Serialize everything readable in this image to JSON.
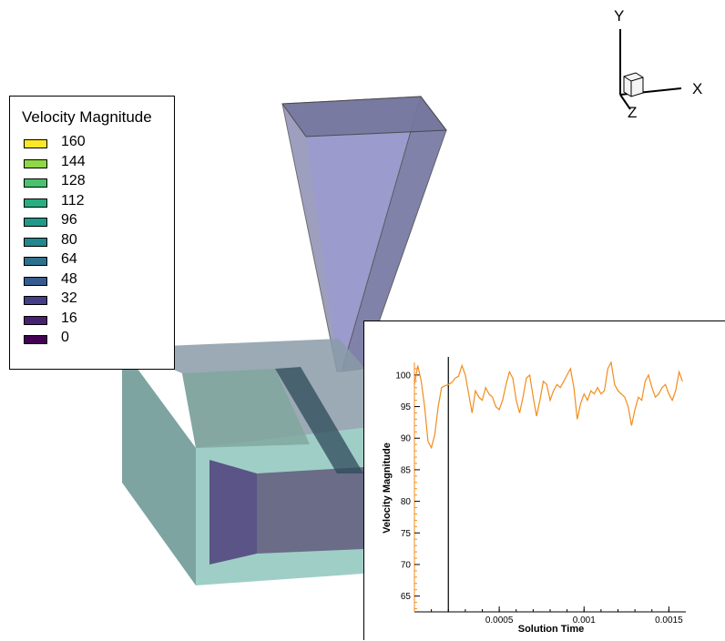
{
  "legend": {
    "title": "Velocity Magnitude",
    "levels": [
      {
        "label": "160",
        "color": "#fde725"
      },
      {
        "label": "144",
        "color": "#8fd744"
      },
      {
        "label": "128",
        "color": "#4ac16d"
      },
      {
        "label": "112",
        "color": "#28ae80"
      },
      {
        "label": "96",
        "color": "#1f9a8a"
      },
      {
        "label": "80",
        "color": "#21888d"
      },
      {
        "label": "64",
        "color": "#2c718e"
      },
      {
        "label": "48",
        "color": "#365c8d"
      },
      {
        "label": "32",
        "color": "#433e85"
      },
      {
        "label": "16",
        "color": "#482173"
      },
      {
        "label": "0",
        "color": "#440154"
      }
    ]
  },
  "axes_triad": {
    "x": "X",
    "y": "Y",
    "z": "Z"
  },
  "chart_data": {
    "type": "line",
    "xlabel": "Solution Time",
    "ylabel": "Velocity Magnitude",
    "xlim": [
      0,
      0.0016
    ],
    "ylim": [
      62.5,
      102
    ],
    "x_ticks": [
      {
        "value": 0.0005,
        "label": "0.0005"
      },
      {
        "value": 0.001,
        "label": "0.001"
      },
      {
        "value": 0.0015,
        "label": "0.0015"
      }
    ],
    "y_ticks": [
      {
        "value": 65,
        "label": "65"
      },
      {
        "value": 70,
        "label": "70"
      },
      {
        "value": 75,
        "label": "75"
      },
      {
        "value": 80,
        "label": "80"
      },
      {
        "value": 85,
        "label": "85"
      },
      {
        "value": 90,
        "label": "90"
      },
      {
        "value": 95,
        "label": "95"
      },
      {
        "value": 100,
        "label": "100"
      }
    ],
    "marker_time": 0.0002,
    "line_color": "#f28c1c",
    "series": [
      {
        "x": [
          0.0,
          2e-05,
          4e-05,
          6e-05,
          8e-05,
          0.0001,
          0.00012,
          0.00014,
          0.00016,
          0.00018,
          0.0002,
          0.00022,
          0.00024,
          0.00026,
          0.00028,
          0.0003,
          0.00032,
          0.00034,
          0.00036,
          0.00038,
          0.0004,
          0.00042,
          0.00044,
          0.00046,
          0.00048,
          0.0005,
          0.00052,
          0.00054,
          0.00056,
          0.00058,
          0.0006,
          0.00062,
          0.00064,
          0.00066,
          0.00068,
          0.0007,
          0.00072,
          0.00074,
          0.00076,
          0.00078,
          0.0008,
          0.00082,
          0.00084,
          0.00086,
          0.00088,
          0.0009,
          0.00092,
          0.00094,
          0.00096,
          0.00098,
          0.001,
          0.00102,
          0.00104,
          0.00106,
          0.00108,
          0.0011,
          0.00112,
          0.00114,
          0.00116,
          0.00118,
          0.0012,
          0.00122,
          0.00124,
          0.00126,
          0.00128,
          0.0013,
          0.00132,
          0.00134,
          0.00136,
          0.00138,
          0.0014,
          0.00142,
          0.00144,
          0.00146,
          0.00148,
          0.0015,
          0.00152,
          0.00154,
          0.00156,
          0.00158
        ],
        "y": [
          98.5,
          101.5,
          99.0,
          95.0,
          89.5,
          88.5,
          90.5,
          95.0,
          98.0,
          98.3,
          98.5,
          98.8,
          99.5,
          99.8,
          101.5,
          100.0,
          97.0,
          94.0,
          97.5,
          96.5,
          96.0,
          98.0,
          97.0,
          96.5,
          95.0,
          94.5,
          96.0,
          98.5,
          100.5,
          99.5,
          96.0,
          94.0,
          96.5,
          99.5,
          100.0,
          96.5,
          93.5,
          96.0,
          99.0,
          98.5,
          96.0,
          97.5,
          98.5,
          98.0,
          99.0,
          100.0,
          101.0,
          98.0,
          93.0,
          95.5,
          97.0,
          96.0,
          97.5,
          97.0,
          98.0,
          97.0,
          97.5,
          101.0,
          102.0,
          98.5,
          97.5,
          97.0,
          96.5,
          95.0,
          92.0,
          94.5,
          96.5,
          96.0,
          99.0,
          100.0,
          98.0,
          96.5,
          97.0,
          98.0,
          98.5,
          97.0,
          96.0,
          97.5,
          100.5,
          99.0
        ]
      }
    ]
  }
}
